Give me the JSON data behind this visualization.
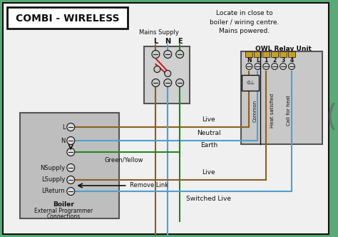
{
  "title": "COMBI - WIRELESS",
  "bg_color": "#5aaa78",
  "note_text": "Locate in close to\nboiler / wiring centre.\nMains powered.",
  "owl_label": "OWL Relay Unit",
  "mains_label": "Mains Supply",
  "mains_terminals": [
    "L",
    "N",
    "E"
  ],
  "owl_terminals": [
    "N",
    "L",
    "1",
    "2",
    "3",
    "4"
  ],
  "boiler_lbls": [
    "L",
    "N",
    "",
    "NSupply",
    "LSupply",
    "LReturn"
  ],
  "boiler_title": "Boiler\nExternal Programmer\nConnections",
  "colors": {
    "brown": "#8B6020",
    "blue": "#4fa0d0",
    "green": "#228822",
    "white": "#FFFFFF",
    "light_gray": "#C8C8C8",
    "mid_gray": "#AAAAAA",
    "dark_gray": "#555555",
    "black": "#111111",
    "red": "#CC2222",
    "gold": "#C8A020"
  }
}
